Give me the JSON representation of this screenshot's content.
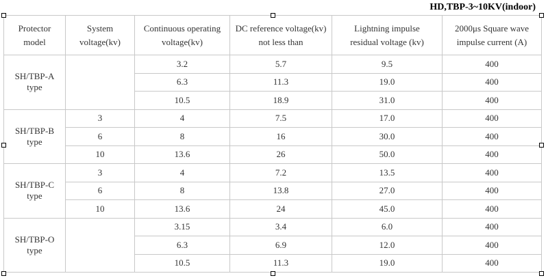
{
  "title": "HD,TBP-3~10KV(indoor)",
  "table": {
    "header": [
      [
        "Protector",
        "model"
      ],
      [
        "System",
        "voltage(kv)"
      ],
      [
        "Continuous operating",
        "voltage(kv)"
      ],
      [
        "DC reference voltage(kv)",
        "not less than"
      ],
      [
        "Lightning impulse",
        "residual voltage (kv)"
      ],
      [
        "2000μs Square wave",
        "impulse current (A)"
      ]
    ],
    "groups": [
      {
        "model": [
          "SH/TBP-A",
          "type"
        ],
        "rows": [
          [
            "3.2",
            "5.7",
            "9.5",
            "400"
          ],
          [
            "6.3",
            "11.3",
            "19.0",
            "400"
          ],
          [
            "10.5",
            "18.9",
            "31.0",
            "400"
          ]
        ]
      },
      {
        "model": [
          "SH/TBP-B",
          "type"
        ],
        "rows": [
          [
            "3",
            "4",
            "7.5",
            "17.0",
            "400"
          ],
          [
            "6",
            "8",
            "16",
            "30.0",
            "400"
          ],
          [
            "10",
            "13.6",
            "26",
            "50.0",
            "400"
          ]
        ]
      },
      {
        "model": [
          "SH/TBP-C",
          "type"
        ],
        "rows": [
          [
            "3",
            "4",
            "7.2",
            "13.5",
            "400"
          ],
          [
            "6",
            "8",
            "13.8",
            "27.0",
            "400"
          ],
          [
            "10",
            "13.6",
            "24",
            "45.0",
            "400"
          ]
        ]
      },
      {
        "model": [
          "SH/TBP-O",
          "type"
        ],
        "rows": [
          [
            "3.15",
            "3.4",
            "6.0",
            "400"
          ],
          [
            "6.3",
            "6.9",
            "12.0",
            "400"
          ],
          [
            "10.5",
            "11.3",
            "19.0",
            "400"
          ]
        ]
      }
    ]
  }
}
